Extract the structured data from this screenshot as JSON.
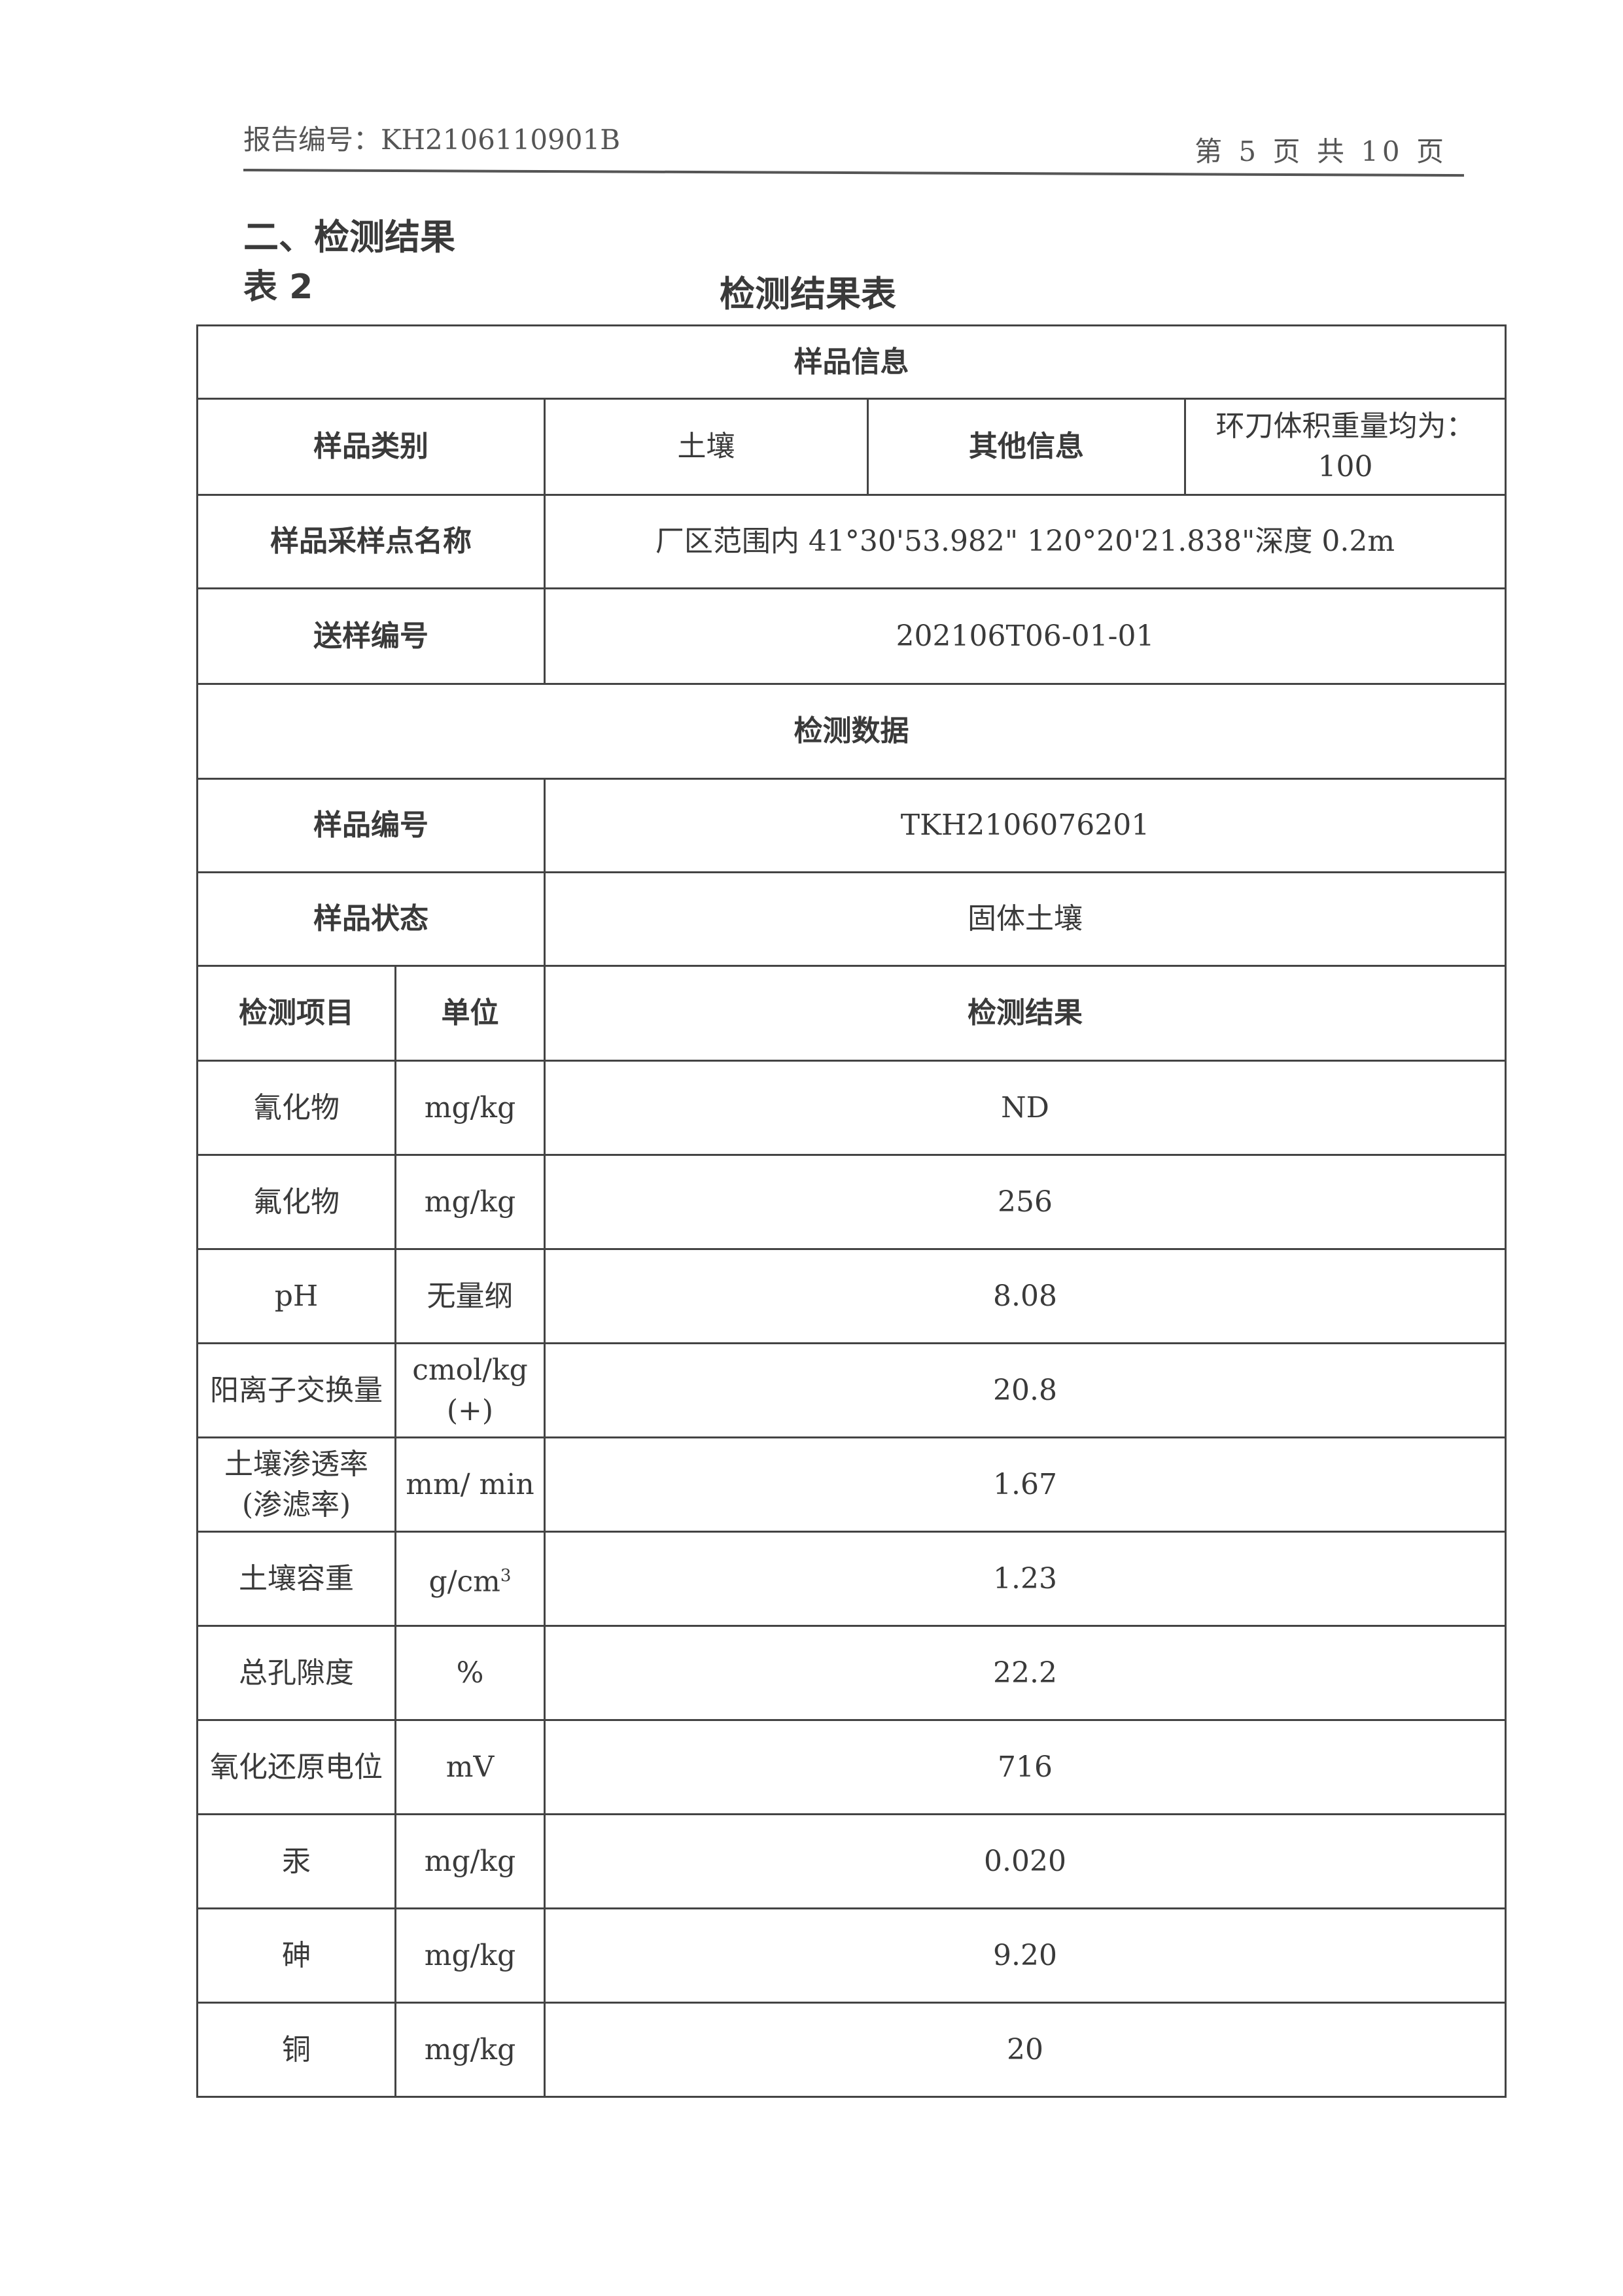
{
  "header": {
    "report_no": "报告编号：KH2106110901B",
    "page": "第 5 页 共 10 页"
  },
  "section_title": "二、检测结果",
  "table_label": "表 2",
  "table_title": "检测结果表",
  "sample_info": {
    "heading": "样品信息",
    "category_label": "样品类别",
    "category_value": "土壤",
    "other_label": "其他信息",
    "other_value": "环刀体积重量均为：100",
    "site_label": "样品采样点名称",
    "site_value": "厂区范围内 41°30'53.982\"  120°20'21.838\"深度 0.2m",
    "delivery_label": "送样编号",
    "delivery_value": "202106T06-01-01"
  },
  "test_data": {
    "heading": "检测数据",
    "sample_no_label": "样品编号",
    "sample_no_value": "TKH2106076201",
    "state_label": "样品状态",
    "state_value": "固体土壤",
    "columns": [
      "检测项目",
      "单位",
      "检测结果"
    ],
    "rows": [
      {
        "item": "氰化物",
        "unit": "mg/kg",
        "result": "ND"
      },
      {
        "item": "氟化物",
        "unit": "mg/kg",
        "result": "256"
      },
      {
        "item": "pH",
        "unit": "无量纲",
        "result": "8.08"
      },
      {
        "item": "阳离子交换量",
        "unit": "cmol/kg (+)",
        "result": "20.8"
      },
      {
        "item": "土壤渗透率(渗滤率)",
        "unit": "mm/ min",
        "result": "1.67"
      },
      {
        "item": "土壤容重",
        "unit": "g/cm",
        "unit_sup": "3",
        "result": "1.23"
      },
      {
        "item": "总孔隙度",
        "unit": "%",
        "result": "22.2"
      },
      {
        "item": "氧化还原电位",
        "unit": "mV",
        "result": "716"
      },
      {
        "item": "汞",
        "unit": "mg/kg",
        "result": "0.020"
      },
      {
        "item": "砷",
        "unit": "mg/kg",
        "result": "9.20"
      },
      {
        "item": "铜",
        "unit": "mg/kg",
        "result": "20"
      }
    ]
  }
}
